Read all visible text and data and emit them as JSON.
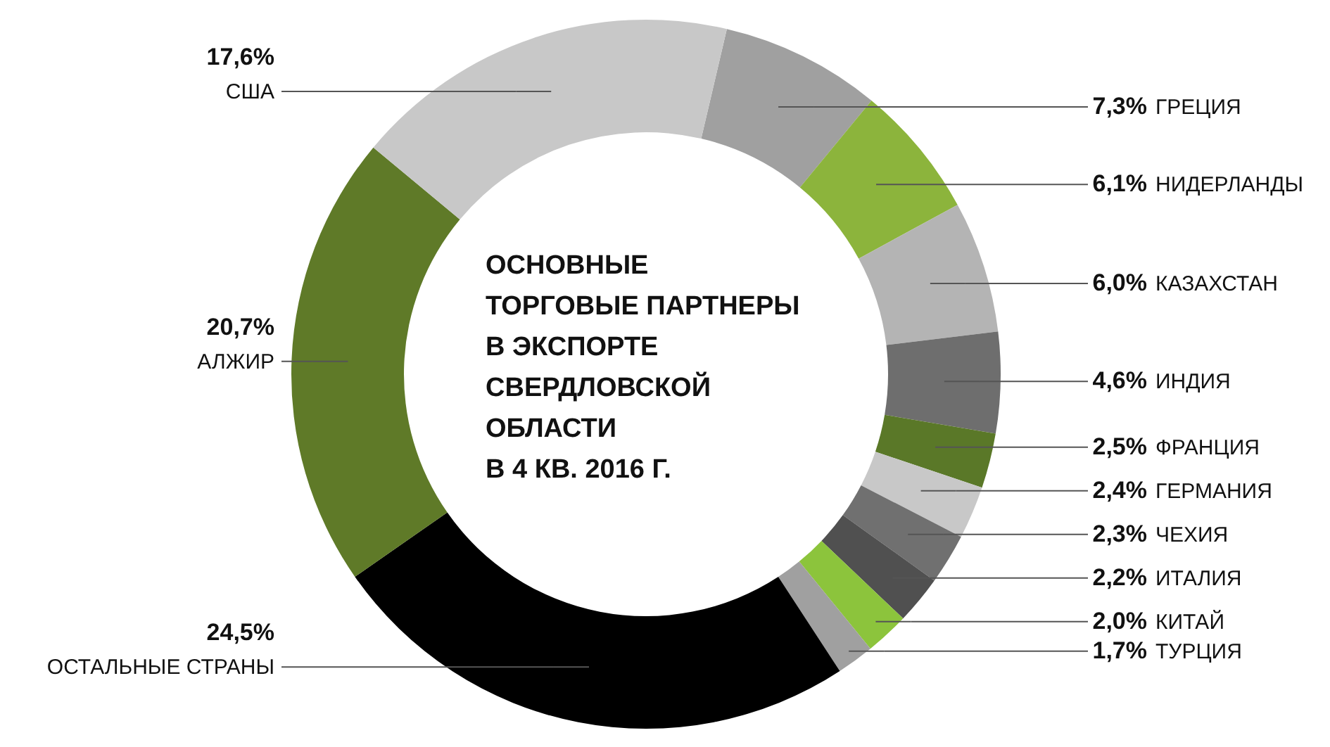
{
  "chart_data": {
    "type": "donut",
    "title": "ОСНОВНЫЕ\nТОРГОВЫЕ ПАРТНЕРЫ\nВ ЭКСПОРТЕ\nСВЕРДЛОВСКОЙ\nОБЛАСТИ\nВ 4 КВ. 2016 Г.",
    "categories": [
      "ГРЕЦИЯ",
      "НИДЕРЛАНДЫ",
      "КАЗАХСТАН",
      "ИНДИЯ",
      "ФРАНЦИЯ",
      "ГЕРМАНИЯ",
      "ЧЕХИЯ",
      "ИТАЛИЯ",
      "КИТАЙ",
      "ТУРЦИЯ",
      "ОСТАЛЬНЫЕ СТРАНЫ",
      "АЛЖИР",
      "США"
    ],
    "values": [
      7.3,
      6.1,
      6.0,
      4.6,
      2.5,
      2.4,
      2.3,
      2.2,
      2.0,
      1.7,
      24.5,
      20.7,
      17.6
    ],
    "colors": [
      "#a0a0a0",
      "#8cb43c",
      "#b4b4b4",
      "#6e6e6e",
      "#5a7828",
      "#c8c8c8",
      "#707070",
      "#505050",
      "#8cc43c",
      "#a0a0a0",
      "#000000",
      "#5f7a28",
      "#c8c8c8"
    ],
    "value_labels": [
      "7,3%",
      "6,1%",
      "6,0%",
      "4,6%",
      "2,5%",
      "2,4%",
      "2,3%",
      "2,2%",
      "2,0%",
      "1,7%",
      "24,5%",
      "20,7%",
      "17,6%"
    ]
  }
}
